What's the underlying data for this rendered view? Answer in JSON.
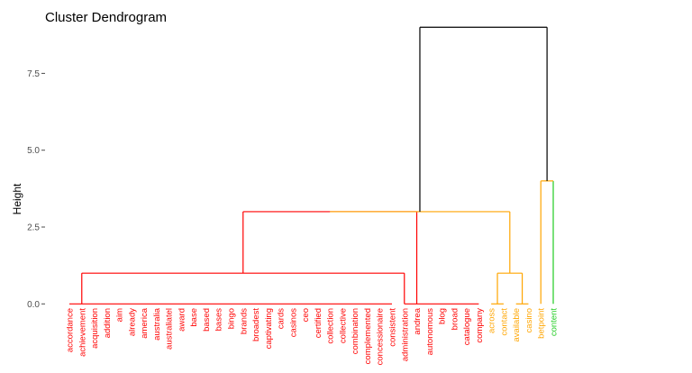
{
  "chart_data": {
    "type": "dendrogram",
    "title": "Cluster Dendrogram",
    "xlabel": "",
    "ylabel": "Height",
    "ylim": [
      -0.05,
      9.3
    ],
    "y_ticks": [
      0.0,
      2.5,
      5.0,
      7.5
    ],
    "y_tick_labels": [
      "0.0",
      "2.5",
      "5.0",
      "7.5"
    ],
    "grid": false,
    "legend": "none",
    "colors": {
      "red": "#ff0000",
      "orange": "#ffa500",
      "green": "#22cc22",
      "root": "#000000",
      "axis_text": "#4d4d4d",
      "title_text": "#000000"
    },
    "leaves": [
      {
        "label": "accordance",
        "cluster": "red"
      },
      {
        "label": "achievement",
        "cluster": "red"
      },
      {
        "label": "acquisition",
        "cluster": "red"
      },
      {
        "label": "addition",
        "cluster": "red"
      },
      {
        "label": "aim",
        "cluster": "red"
      },
      {
        "label": "already",
        "cluster": "red"
      },
      {
        "label": "america",
        "cluster": "red"
      },
      {
        "label": "australia",
        "cluster": "red"
      },
      {
        "label": "australiatel",
        "cluster": "red"
      },
      {
        "label": "award",
        "cluster": "red"
      },
      {
        "label": "base",
        "cluster": "red"
      },
      {
        "label": "based",
        "cluster": "red"
      },
      {
        "label": "bases",
        "cluster": "red"
      },
      {
        "label": "bingo",
        "cluster": "red"
      },
      {
        "label": "brands",
        "cluster": "red"
      },
      {
        "label": "broadest",
        "cluster": "red"
      },
      {
        "label": "captivating",
        "cluster": "red"
      },
      {
        "label": "cards",
        "cluster": "red"
      },
      {
        "label": "casinos",
        "cluster": "red"
      },
      {
        "label": "ceo",
        "cluster": "red"
      },
      {
        "label": "certified",
        "cluster": "red"
      },
      {
        "label": "collection",
        "cluster": "red"
      },
      {
        "label": "collective",
        "cluster": "red"
      },
      {
        "label": "combination",
        "cluster": "red"
      },
      {
        "label": "complemented",
        "cluster": "red"
      },
      {
        "label": "concessionaire",
        "cluster": "red"
      },
      {
        "label": "consistent",
        "cluster": "red"
      },
      {
        "label": "administration",
        "cluster": "red"
      },
      {
        "label": "andrea",
        "cluster": "red"
      },
      {
        "label": "autonomous",
        "cluster": "red"
      },
      {
        "label": "blog",
        "cluster": "red"
      },
      {
        "label": "broad",
        "cluster": "red"
      },
      {
        "label": "catalogue",
        "cluster": "red"
      },
      {
        "label": "company",
        "cluster": "red"
      },
      {
        "label": "across",
        "cluster": "orange"
      },
      {
        "label": "contact",
        "cluster": "orange"
      },
      {
        "label": "available",
        "cluster": "orange"
      },
      {
        "label": "casino",
        "cluster": "orange"
      },
      {
        "label": "betpoint",
        "cluster": "orange"
      },
      {
        "label": "content",
        "cluster": "green"
      }
    ],
    "merges": [
      {
        "name": "red-left",
        "color": "red",
        "height": 0.0,
        "leaf_range": [
          0,
          26
        ],
        "stub_leaf": 1
      },
      {
        "name": "red-mid",
        "color": "red",
        "height": 0.0,
        "leaf_range": [
          27,
          33
        ],
        "stub_leaf": 27
      },
      {
        "name": "red-sub",
        "color": "red",
        "height": 1.0,
        "left": "red-left",
        "right": "red-mid"
      },
      {
        "name": "red-top",
        "color": "red",
        "height": 3.0,
        "left": "red-sub",
        "right": {
          "leaf": 28
        }
      },
      {
        "name": "orange-a",
        "color": "orange",
        "height": 0.0,
        "leaf_range": [
          34,
          35
        ]
      },
      {
        "name": "orange-b",
        "color": "orange",
        "height": 0.0,
        "leaf_range": [
          36,
          37
        ]
      },
      {
        "name": "orange-sub",
        "color": "orange",
        "height": 1.0,
        "left": "orange-a",
        "right": "orange-b"
      },
      {
        "name": "orange-top",
        "color": "orange",
        "height": 3.0,
        "left": "red-top",
        "right": "orange-sub"
      },
      {
        "name": "green-top",
        "color": "orange",
        "height": 4.0,
        "left": {
          "leaf": 38
        },
        "right": {
          "leaf": 39
        },
        "right_color": "green"
      },
      {
        "name": "root",
        "color": "root",
        "height": 9.0,
        "left": "orange-top",
        "right": "green-top"
      }
    ]
  }
}
